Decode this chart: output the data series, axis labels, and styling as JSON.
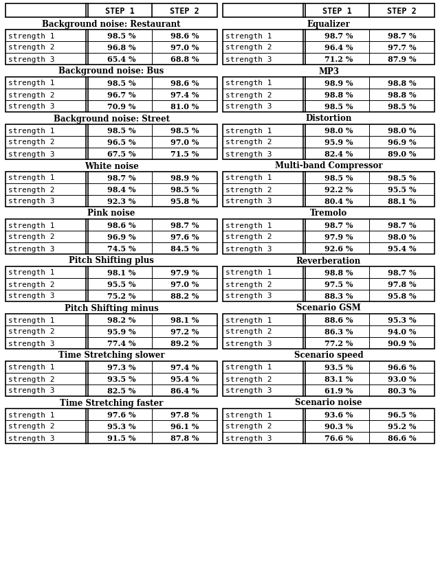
{
  "left_sections": [
    {
      "title": "Background noise: Restaurant",
      "rows": [
        [
          "strength 1",
          "98.5",
          "98.6"
        ],
        [
          "strength 2",
          "96.8",
          "97.0"
        ],
        [
          "strength 3",
          "65.4",
          "68.8"
        ]
      ]
    },
    {
      "title": "Background noise: Bus",
      "rows": [
        [
          "strength 1",
          "98.5",
          "98.6"
        ],
        [
          "strength 2",
          "96.7",
          "97.4"
        ],
        [
          "strength 3",
          "70.9",
          "81.0"
        ]
      ]
    },
    {
      "title": "Background noise: Street",
      "rows": [
        [
          "strength 1",
          "98.5",
          "98.5"
        ],
        [
          "strength 2",
          "96.5",
          "97.0"
        ],
        [
          "strength 3",
          "67.5",
          "71.5"
        ]
      ]
    },
    {
      "title": "White noise",
      "rows": [
        [
          "strength 1",
          "98.7",
          "98.9"
        ],
        [
          "strength 2",
          "98.4",
          "98.5"
        ],
        [
          "strength 3",
          "92.3",
          "95.8"
        ]
      ]
    },
    {
      "title": "Pink noise",
      "rows": [
        [
          "strength 1",
          "98.6",
          "98.7"
        ],
        [
          "strength 2",
          "96.9",
          "97.6"
        ],
        [
          "strength 3",
          "74.5",
          "84.5"
        ]
      ]
    },
    {
      "title": "Pitch Shifting plus",
      "rows": [
        [
          "strength 1",
          "98.1",
          "97.9"
        ],
        [
          "strength 2",
          "95.5",
          "97.0"
        ],
        [
          "strength 3",
          "75.2",
          "88.2"
        ]
      ]
    },
    {
      "title": "Pitch Shifting minus",
      "rows": [
        [
          "strength 1",
          "98.2",
          "98.1"
        ],
        [
          "strength 2",
          "95.9",
          "97.2"
        ],
        [
          "strength 3",
          "77.4",
          "89.2"
        ]
      ]
    },
    {
      "title": "Time Stretching slower",
      "rows": [
        [
          "strength 1",
          "97.3",
          "97.4"
        ],
        [
          "strength 2",
          "93.5",
          "95.4"
        ],
        [
          "strength 3",
          "82.5",
          "86.4"
        ]
      ]
    },
    {
      "title": "Time Stretching faster",
      "rows": [
        [
          "strength 1",
          "97.6",
          "97.8"
        ],
        [
          "strength 2",
          "95.3",
          "96.1"
        ],
        [
          "strength 3",
          "91.5",
          "87.8"
        ]
      ]
    }
  ],
  "right_sections": [
    {
      "title": "Equalizer",
      "rows": [
        [
          "strength 1",
          "98.7",
          "98.7"
        ],
        [
          "strength 2",
          "96.4",
          "97.7"
        ],
        [
          "strength 3",
          "71.2",
          "87.9"
        ]
      ]
    },
    {
      "title": "MP3",
      "rows": [
        [
          "strength 1",
          "98.9",
          "98.8"
        ],
        [
          "strength 2",
          "98.8",
          "98.8"
        ],
        [
          "strength 3",
          "98.5",
          "98.5"
        ]
      ]
    },
    {
      "title": "Distortion",
      "rows": [
        [
          "strength 1",
          "98.0",
          "98.0"
        ],
        [
          "strength 2",
          "95.9",
          "96.9"
        ],
        [
          "strength 3",
          "82.4",
          "89.0"
        ]
      ]
    },
    {
      "title": "Multi-band Compressor",
      "rows": [
        [
          "strength 1",
          "98.5",
          "98.5"
        ],
        [
          "strength 2",
          "92.2",
          "95.5"
        ],
        [
          "strength 3",
          "80.4",
          "88.1"
        ]
      ]
    },
    {
      "title": "Tremolo",
      "rows": [
        [
          "strength 1",
          "98.7",
          "98.7"
        ],
        [
          "strength 2",
          "97.9",
          "98.0"
        ],
        [
          "strength 3",
          "92.6",
          "95.4"
        ]
      ]
    },
    {
      "title": "Reverberation",
      "rows": [
        [
          "strength 1",
          "98.8",
          "98.7"
        ],
        [
          "strength 2",
          "97.5",
          "97.8"
        ],
        [
          "strength 3",
          "88.3",
          "95.8"
        ]
      ]
    },
    {
      "title": "Scenario GSM",
      "rows": [
        [
          "strength 1",
          "88.6",
          "95.3"
        ],
        [
          "strength 2",
          "86.3",
          "94.0"
        ],
        [
          "strength 3",
          "77.2",
          "90.9"
        ]
      ]
    },
    {
      "title": "Scenario speed",
      "rows": [
        [
          "strength 1",
          "93.5",
          "96.6"
        ],
        [
          "strength 2",
          "83.1",
          "93.0"
        ],
        [
          "strength 3",
          "61.9",
          "80.3"
        ]
      ]
    },
    {
      "title": "Scenario noise",
      "rows": [
        [
          "strength 1",
          "93.6",
          "96.5"
        ],
        [
          "strength 2",
          "90.3",
          "95.2"
        ],
        [
          "strength 3",
          "76.6",
          "86.6"
        ]
      ]
    }
  ],
  "bg_color": "#ffffff"
}
